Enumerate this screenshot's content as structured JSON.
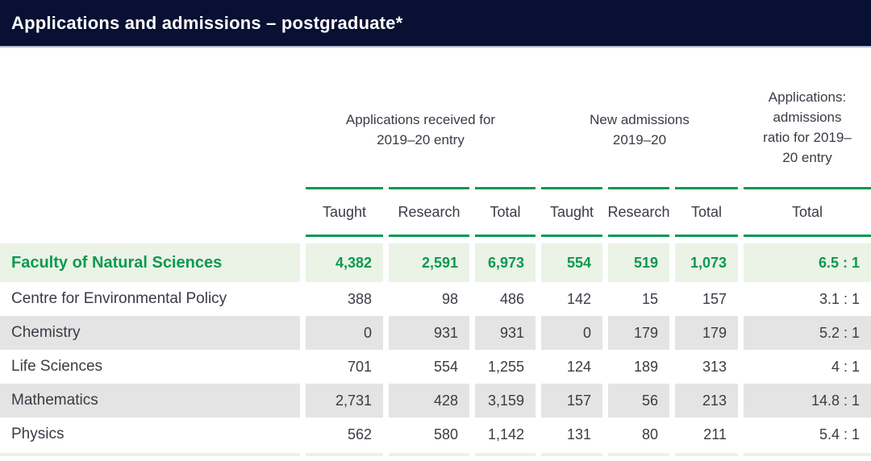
{
  "title": "Applications and admissions – postgraduate*",
  "colors": {
    "header_bar": "#081033",
    "accent_green": "#0c9950",
    "highlight_row_bg": "#eaf3e6",
    "shaded_row_bg": "#e4e4e4",
    "body_text": "#3a3b46"
  },
  "table": {
    "column_groups": [
      {
        "label": "Applications received for 2019–20 entry"
      },
      {
        "label": "New admissions 2019–20"
      },
      {
        "label": "Applications: admissions ratio for 2019–20 entry"
      }
    ],
    "subheaders": [
      "Taught",
      "Research",
      "Total",
      "Taught",
      "Research",
      "Total",
      "Total"
    ],
    "rows": [
      {
        "label": "Faculty of Natural Sciences",
        "style": "highlight",
        "values": [
          "4,382",
          "2,591",
          "6,973",
          "554",
          "519",
          "1,073",
          "6.5 : 1"
        ]
      },
      {
        "label": "Centre for Environmental Policy",
        "style": "white",
        "values": [
          "388",
          "98",
          "486",
          "142",
          "15",
          "157",
          "3.1 : 1"
        ]
      },
      {
        "label": "Chemistry",
        "style": "shaded",
        "values": [
          "0",
          "931",
          "931",
          "0",
          "179",
          "179",
          "5.2 : 1"
        ]
      },
      {
        "label": "Life Sciences",
        "style": "white",
        "values": [
          "701",
          "554",
          "1,255",
          "124",
          "189",
          "313",
          "4 : 1"
        ]
      },
      {
        "label": "Mathematics",
        "style": "shaded",
        "values": [
          "2,731",
          "428",
          "3,159",
          "157",
          "56",
          "213",
          "14.8 : 1"
        ]
      },
      {
        "label": "Physics",
        "style": "white",
        "values": [
          "562",
          "580",
          "1,142",
          "131",
          "80",
          "211",
          "5.4 : 1"
        ]
      }
    ]
  }
}
